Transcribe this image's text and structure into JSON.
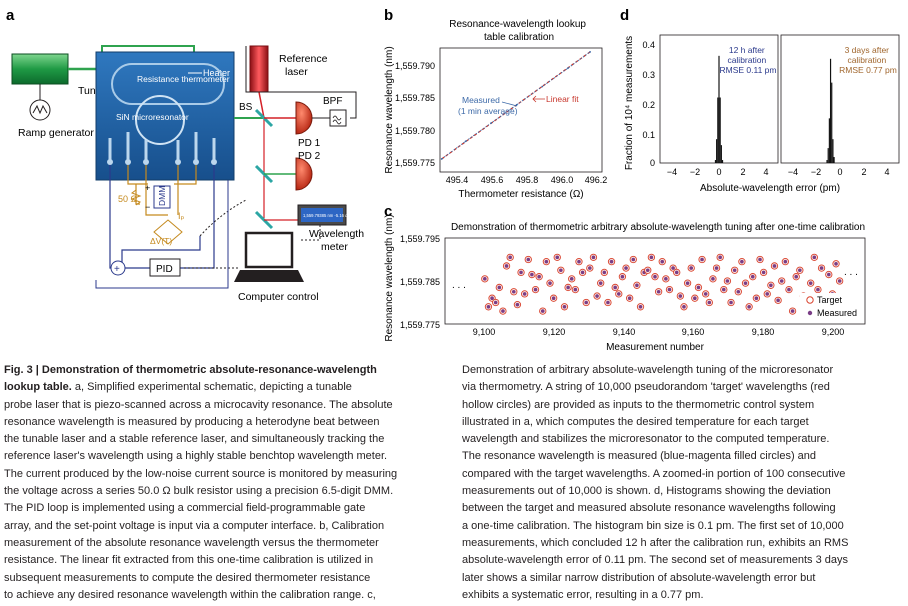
{
  "colors": {
    "chip": "#1f5f9f",
    "laser_green": "#2fa34f",
    "ref_red": "#d42027",
    "wire_blue": "#2b3a8c",
    "wire_gold": "#c58a1e",
    "teal": "#2ca6a4",
    "pd_red": "#e23b2c",
    "target": "#d9432e",
    "measured": "#7a3d86",
    "fit_red": "#c8372d",
    "meas_blue": "#3d6aa8"
  },
  "panel_a": {
    "label": "a",
    "tunable_laser": "Tunable probe laser",
    "ramp": "Ramp generator",
    "heater": "Heater",
    "resistance_thermometer": "Resistance thermometer",
    "microresonator": "SiN microresonator",
    "reference_laser": "Reference laser",
    "bs": "BS",
    "bpf": "BPF",
    "pd1": "PD 1",
    "pd2": "PD 2",
    "wavemeter_display": "1,559.79385 nm -5.16 dBm",
    "wavelength_meter": "Wavelength meter",
    "computer": "Computer control",
    "dmm": "DMM",
    "resistor": "50 Ω",
    "current": "Iₚ",
    "delta_v": "ΔV(T)",
    "pid": "PID",
    "plus": "+",
    "minus": "−"
  },
  "panel_b": {
    "label": "b",
    "title_line1": "Resonance-wavelength lookup",
    "title_line2": "table calibration",
    "ylabel": "Resonance wavelength (nm)",
    "xlabel": "Thermometer resistance (Ω)",
    "yticks": [
      "1,559.790",
      "1,559.785",
      "1,559.780",
      "1,559.775"
    ],
    "xticks": [
      "495.4",
      "495.6",
      "495.8",
      "496.0",
      "496.2"
    ],
    "legend_measured_1": "Measured",
    "legend_measured_2": "(1 min average)",
    "legend_fit": "Linear fit"
  },
  "panel_c": {
    "label": "c",
    "title": "Demonstration of thermometric arbitrary absolute-wavelength tuning after one-time calibration",
    "ylabel": "Resonance wavelength (nm)",
    "xlabel": "Measurement number",
    "yticks": [
      "1,559.795",
      "1,559.785",
      "1,559.775"
    ],
    "xticks": [
      "9,100",
      "9,120",
      "9,140",
      "9,160",
      "9,180",
      "9,200"
    ],
    "ellipsis": ". . .",
    "legend_target": "Target",
    "legend_measured": "Measured"
  },
  "panel_d": {
    "label": "d",
    "ylabel": "Fraction of 10⁴ measurements",
    "xlabel": "Absolute-wavelength error (pm)",
    "yticks": [
      "0.4",
      "0.3",
      "0.2",
      "0.1",
      "0"
    ],
    "xticks": [
      "−4",
      "−2",
      "0",
      "2",
      "4"
    ],
    "left_note_1": "12 h after",
    "left_note_2": "calibration",
    "left_note_3": "RMSE 0.11 pm",
    "right_note_1": "3 days after",
    "right_note_2": "calibration",
    "right_note_3": "RMSE 0.77 pm"
  },
  "chart_data": [
    {
      "type": "line",
      "title": "Resonance-wavelength lookup table calibration",
      "xlabel": "Thermometer resistance (Ω)",
      "ylabel": "Resonance wavelength (nm)",
      "xlim": [
        495.3,
        496.25
      ],
      "ylim": [
        1559.774,
        1559.793
      ],
      "series": [
        {
          "name": "Measured (1 min average)",
          "x": [
            495.31,
            495.45,
            495.6,
            495.75,
            495.9,
            496.05,
            496.18
          ],
          "y": [
            1559.776,
            1559.7787,
            1559.7815,
            1559.7843,
            1559.7871,
            1559.7899,
            1559.7924
          ]
        },
        {
          "name": "Linear fit",
          "x": [
            495.31,
            496.18
          ],
          "y": [
            1559.776,
            1559.7924
          ]
        }
      ]
    },
    {
      "type": "scatter",
      "title": "Demonstration of thermometric arbitrary absolute-wavelength tuning after one-time calibration",
      "xlabel": "Measurement number",
      "ylabel": "Resonance wavelength (nm)",
      "xlim": [
        9090,
        9206
      ],
      "ylim": [
        1559.775,
        1559.795
      ],
      "x": [
        9101,
        9102,
        9103,
        9104,
        9105,
        9106,
        9107,
        9108,
        9109,
        9110,
        9111,
        9112,
        9113,
        9114,
        9115,
        9116,
        9117,
        9118,
        9119,
        9120,
        9121,
        9122,
        9123,
        9124,
        9125,
        9126,
        9127,
        9128,
        9129,
        9130,
        9131,
        9132,
        9133,
        9134,
        9135,
        9136,
        9137,
        9138,
        9139,
        9140,
        9141,
        9142,
        9143,
        9144,
        9145,
        9146,
        9147,
        9148,
        9149,
        9150,
        9151,
        9152,
        9153,
        9154,
        9155,
        9156,
        9157,
        9158,
        9159,
        9160,
        9161,
        9162,
        9163,
        9164,
        9165,
        9166,
        9167,
        9168,
        9169,
        9170,
        9171,
        9172,
        9173,
        9174,
        9175,
        9176,
        9177,
        9178,
        9179,
        9180,
        9181,
        9182,
        9183,
        9184,
        9185,
        9186,
        9187,
        9188,
        9189,
        9190,
        9191,
        9192,
        9193,
        9194,
        9195,
        9196,
        9197,
        9198,
        9199,
        9200
      ],
      "target": [
        1559.7855,
        1559.779,
        1559.781,
        1559.78,
        1559.7835,
        1559.778,
        1559.7885,
        1559.7905,
        1559.7825,
        1559.7795,
        1559.787,
        1559.782,
        1559.79,
        1559.7865,
        1559.783,
        1559.786,
        1559.778,
        1559.7895,
        1559.7845,
        1559.781,
        1559.7905,
        1559.7875,
        1559.779,
        1559.7835,
        1559.7855,
        1559.783,
        1559.7895,
        1559.787,
        1559.78,
        1559.788,
        1559.7905,
        1559.7815,
        1559.7845,
        1559.787,
        1559.78,
        1559.7895,
        1559.7835,
        1559.782,
        1559.786,
        1559.788,
        1559.781,
        1559.79,
        1559.784,
        1559.779,
        1559.787,
        1559.7875,
        1559.7905,
        1559.786,
        1559.7825,
        1559.7895,
        1559.7855,
        1559.783,
        1559.788,
        1559.787,
        1559.7815,
        1559.779,
        1559.7845,
        1559.788,
        1559.781,
        1559.7835,
        1559.79,
        1559.782,
        1559.78,
        1559.7855,
        1559.788,
        1559.7905,
        1559.783,
        1559.785,
        1559.78,
        1559.7875,
        1559.7825,
        1559.7895,
        1559.7845,
        1559.779,
        1559.786,
        1559.781,
        1559.79,
        1559.787,
        1559.782,
        1559.784,
        1559.7885,
        1559.7805,
        1559.785,
        1559.7895,
        1559.783,
        1559.778,
        1559.786,
        1559.7875,
        1559.7815,
        1559.7795,
        1559.7845,
        1559.7905,
        1559.783,
        1559.788,
        1559.78,
        1559.7865,
        1559.782,
        1559.789,
        1559.785,
        1559.781
      ]
    },
    {
      "type": "bar",
      "title": "12 h after calibration, RMSE 0.11 pm",
      "xlabel": "Absolute-wavelength error (pm)",
      "ylabel": "Fraction of 10⁴ measurements",
      "xlim": [
        -5,
        5
      ],
      "ylim": [
        0,
        0.43
      ],
      "x": [
        -0.3,
        -0.2,
        -0.1,
        0.0,
        0.1,
        0.2,
        0.3
      ],
      "values": [
        0.01,
        0.08,
        0.22,
        0.36,
        0.22,
        0.06,
        0.01
      ]
    },
    {
      "type": "bar",
      "title": "3 days after calibration, RMSE 0.77 pm",
      "xlabel": "Absolute-wavelength error (pm)",
      "ylabel": "Fraction of 10⁴ measurements",
      "xlim": [
        -5,
        5
      ],
      "ylim": [
        0,
        0.43
      ],
      "x": [
        -1.1,
        -1.0,
        -0.9,
        -0.8,
        -0.7,
        -0.6,
        -0.5
      ],
      "values": [
        0.01,
        0.05,
        0.15,
        0.35,
        0.27,
        0.08,
        0.02
      ]
    }
  ],
  "caption_left": [
    {
      "bold": "Fig. 3 | Demonstration of thermometric absolute-resonance-wavelength",
      "text": ""
    },
    {
      "bold": "lookup table.",
      "text": " a, Simplified experimental schematic, depicting a tunable"
    },
    {
      "bold": "",
      "text": "probe laser that is piezo-scanned across a microcavity resonance. The absolute"
    },
    {
      "bold": "",
      "text": "resonance wavelength is measured by producing a heterodyne beat between"
    },
    {
      "bold": "",
      "text": "the tunable laser and a stable reference laser, and simultaneously tracking the"
    },
    {
      "bold": "",
      "text": "reference laser's wavelength using a highly stable benchtop wavelength meter."
    },
    {
      "bold": "",
      "text": "The current produced by the low-noise current source is monitored by measuring"
    },
    {
      "bold": "",
      "text": "the voltage across a series 50.0 Ω bulk resistor using a precision 6.5-digit DMM."
    },
    {
      "bold": "",
      "text": "The PID loop is implemented using a commercial field-programmable gate"
    },
    {
      "bold": "",
      "text": "array, and the set-point voltage is input via a computer interface. b, Calibration"
    },
    {
      "bold": "",
      "text": "measurement of the absolute resonance wavelength versus the thermometer"
    },
    {
      "bold": "",
      "text": "resistance. The linear fit extracted from this one-time calibration is utilized in"
    },
    {
      "bold": "",
      "text": "subsequent measurements to compute the desired thermometer resistance"
    },
    {
      "bold": "",
      "text": "to achieve any desired resonance wavelength within the calibration range. c,"
    }
  ],
  "caption_right": [
    "Demonstration of arbitrary absolute-wavelength tuning of the microresonator",
    "via thermometry. A string of 10,000 pseudorandom 'target' wavelengths (red",
    "hollow circles) are provided as inputs to the thermometric control system",
    "illustrated in a, which computes the desired temperature for each target",
    "wavelength and stabilizes the microresonator to the computed temperature.",
    "The resonance wavelength is measured (blue-magenta filled circles) and",
    "compared with the target wavelengths. A zoomed-in portion of 100 consecutive",
    "measurements out of 10,000 is shown. d, Histograms showing the deviation",
    "between the target and measured absolute resonance wavelengths following",
    "a one-time calibration. The histogram bin size is 0.1 pm. The first set of 10,000",
    "measurements, which concluded 12 h after the calibration run, exhibits an RMS",
    "absolute-wavelength error of 0.11 pm. The second set of measurements 3 days",
    "later shows a similar narrow distribution of absolute-wavelength error but",
    "exhibits a systematic error, resulting in a 0.77 pm."
  ]
}
